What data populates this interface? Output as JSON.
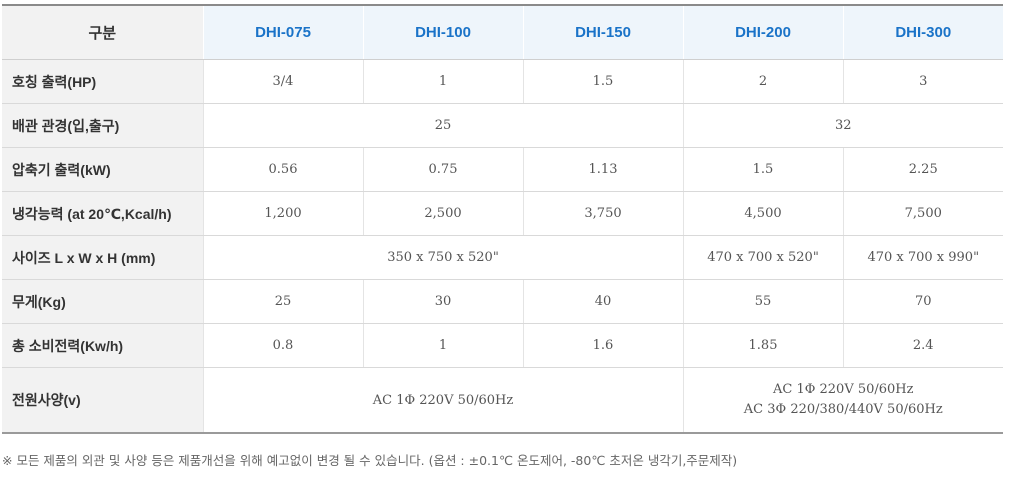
{
  "table": {
    "corner_header": "구분",
    "models": [
      "DHI-075",
      "DHI-100",
      "DHI-150",
      "DHI-200",
      "DHI-300"
    ],
    "rows": {
      "hp": {
        "label": "호칭 출력(HP)",
        "values": [
          "3/4",
          "1",
          "1.5",
          "2",
          "3"
        ]
      },
      "pipe": {
        "label": "배관 관경(입,출구)",
        "values": [
          "25",
          "32"
        ]
      },
      "kw": {
        "label": "압축기 출력(kW)",
        "values": [
          "0.56",
          "0.75",
          "1.13",
          "1.5",
          "2.25"
        ]
      },
      "cool": {
        "label": "냉각능력 (at 20℃,Kcal/h)",
        "values": [
          "1,200",
          "2,500",
          "3,750",
          "4,500",
          "7,500"
        ]
      },
      "size": {
        "label": "사이즈 L x W x H (mm)",
        "values": [
          "350 x 750 x 520\"",
          "470 x 700 x 520\"",
          "470 x 700 x 990\""
        ]
      },
      "weight": {
        "label": "무게(Kg)",
        "values": [
          "25",
          "30",
          "40",
          "55",
          "70"
        ]
      },
      "power": {
        "label": "총 소비전력(Kw/h)",
        "values": [
          "0.8",
          "1",
          "1.6",
          "1.85",
          "2.4"
        ]
      },
      "supply": {
        "label": "전원사양(v)",
        "values": [
          "AC 1Φ 220V 50/60Hz",
          "AC 1Φ 220V 50/60Hz",
          "AC 3Φ 220/380/440V 50/60Hz"
        ]
      }
    }
  },
  "note": "※ 모든 제품의 외관 및 사양 등은 제품개선을 위해 예고없이 변경 될 수 있습니다. (옵션 : ±0.1℃ 온도제어, -80℃ 초저온 냉각기,주문제작)"
}
